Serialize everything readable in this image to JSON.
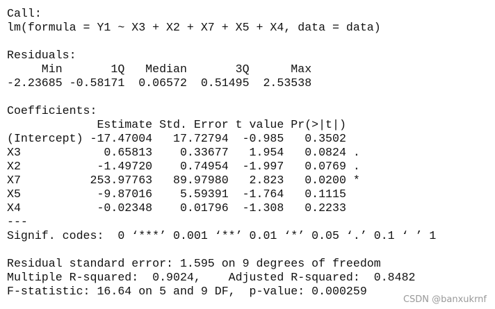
{
  "console": {
    "blocks": [
      [
        "Call:",
        "lm(formula = Y1 ~ X3 + X2 + X7 + X5 + X4, data = data)"
      ],
      [
        "Residuals:",
        "     Min       1Q   Median       3Q      Max ",
        "-2.23685 -0.58171  0.06572  0.51495  2.53538 "
      ],
      [
        "Coefficients:",
        "             Estimate Std. Error t value Pr(>|t|)  ",
        "(Intercept) -17.47004   17.72794  -0.985   0.3502  ",
        "X3            0.65813    0.33677   1.954   0.0824 .",
        "X2           -1.49720    0.74954  -1.997   0.0769 .",
        "X7          253.97763   89.97980   2.823   0.0200 *",
        "X5           -9.87016    5.59391  -1.764   0.1115  ",
        "X4           -0.02348    0.01796  -1.308   0.2233  ",
        "---",
        "Signif. codes:  0 ‘***’ 0.001 ‘**’ 0.01 ‘*’ 0.05 ‘.’ 0.1 ‘ ’ 1"
      ],
      [
        "Residual standard error: 1.595 on 9 degrees of freedom",
        "Multiple R-squared:  0.9024,    Adjusted R-squared:  0.8482 ",
        "F-statistic: 16.64 on 5 and 9 DF,  p-value: 0.000259"
      ]
    ]
  },
  "watermark": "CSDN @banxukrnf"
}
